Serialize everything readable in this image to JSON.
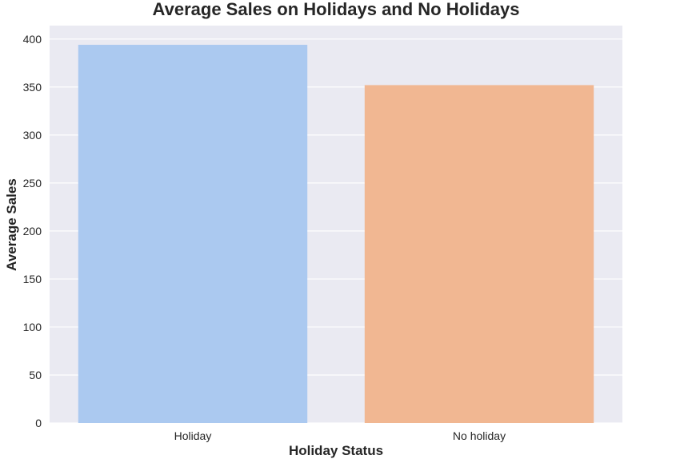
{
  "chart_data": {
    "type": "bar",
    "title": "Average Sales on Holidays and No Holidays",
    "xlabel": "Holiday Status",
    "ylabel": "Average Sales",
    "categories": [
      "Holiday",
      "No holiday"
    ],
    "values": [
      394,
      352
    ],
    "ylim": [
      0,
      414
    ],
    "yticks": [
      0,
      50,
      100,
      150,
      200,
      250,
      300,
      350,
      400
    ],
    "ytick_labels": [
      "0",
      "50",
      "100",
      "150",
      "200",
      "250",
      "300",
      "350",
      "400"
    ],
    "colors": [
      "#abc9f0",
      "#f1b792"
    ],
    "background": "#eaeaf2",
    "grid": true,
    "legend": "none"
  }
}
